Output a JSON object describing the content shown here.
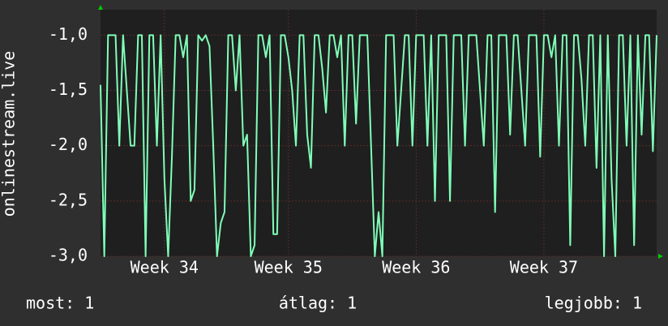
{
  "chart_data": {
    "type": "line",
    "y_label": "onlinestream.live",
    "series": [
      {
        "name": "onlinestream.live",
        "color": "#7fffb8",
        "values": [
          -1.45,
          -3,
          -1,
          -1,
          -1,
          -2,
          -1,
          -1.5,
          -2,
          -2,
          -1,
          -1,
          -3,
          -1,
          -1,
          -2,
          -1,
          -2.3,
          -3,
          -2.1,
          -1,
          -1,
          -1.2,
          -1,
          -2.5,
          -2.4,
          -1,
          -1.05,
          -1,
          -1.1,
          -2,
          -3,
          -2.7,
          -2.6,
          -1,
          -1,
          -1.5,
          -1,
          -2,
          -1.9,
          -3,
          -2.9,
          -1,
          -1,
          -1.2,
          -1,
          -2.8,
          -2.8,
          -1,
          -1,
          -1.2,
          -1.5,
          -2,
          -1,
          -1,
          -1.9,
          -2.2,
          -1,
          -1,
          -1.3,
          -1.7,
          -1,
          -1,
          -1.2,
          -1,
          -2,
          -1,
          -1,
          -1.8,
          -1,
          -1,
          -1,
          -2,
          -3,
          -2.6,
          -3,
          -1,
          -1,
          -1,
          -2,
          -1.5,
          -1,
          -1,
          -2,
          -1,
          -1,
          -1,
          -2,
          -1,
          -2.5,
          -1,
          -1,
          -1,
          -2.5,
          -1,
          -1,
          -1,
          -2,
          -1,
          -1,
          -1,
          -1.5,
          -2,
          -1,
          -1,
          -2.6,
          -1,
          -1,
          -1,
          -1.9,
          -1,
          -1,
          -1.5,
          -2,
          -1,
          -1,
          -1,
          -2.1,
          -1,
          -1,
          -1.2,
          -1,
          -2,
          -1,
          -1,
          -2.9,
          -1,
          -1,
          -1.4,
          -2,
          -1,
          -1,
          -2.2,
          -1,
          -3,
          -1,
          -2.3,
          -3,
          -1,
          -1,
          -2,
          -1,
          -2.9,
          -1,
          -1.9,
          -1,
          -1,
          -2.05,
          -1
        ]
      }
    ],
    "xlim": [
      0,
      148
    ],
    "xticks": [
      {
        "value": 17,
        "label": "Week 34"
      },
      {
        "value": 50,
        "label": "Week 35"
      },
      {
        "value": 84,
        "label": "Week 36"
      },
      {
        "value": 118,
        "label": "Week 37"
      }
    ],
    "ylim": [
      -3,
      -0.77
    ],
    "yticks": [
      {
        "value": -3,
        "label": "-3,0"
      },
      {
        "value": -2.5,
        "label": "-2,5"
      },
      {
        "value": -2,
        "label": "-2,0"
      },
      {
        "value": -1.5,
        "label": "-1,5"
      },
      {
        "value": -1,
        "label": "-1,0"
      }
    ],
    "grid": true
  },
  "footer": {
    "current": "most: 1",
    "average": "átlag: 1",
    "max": "legjobb: 1"
  }
}
